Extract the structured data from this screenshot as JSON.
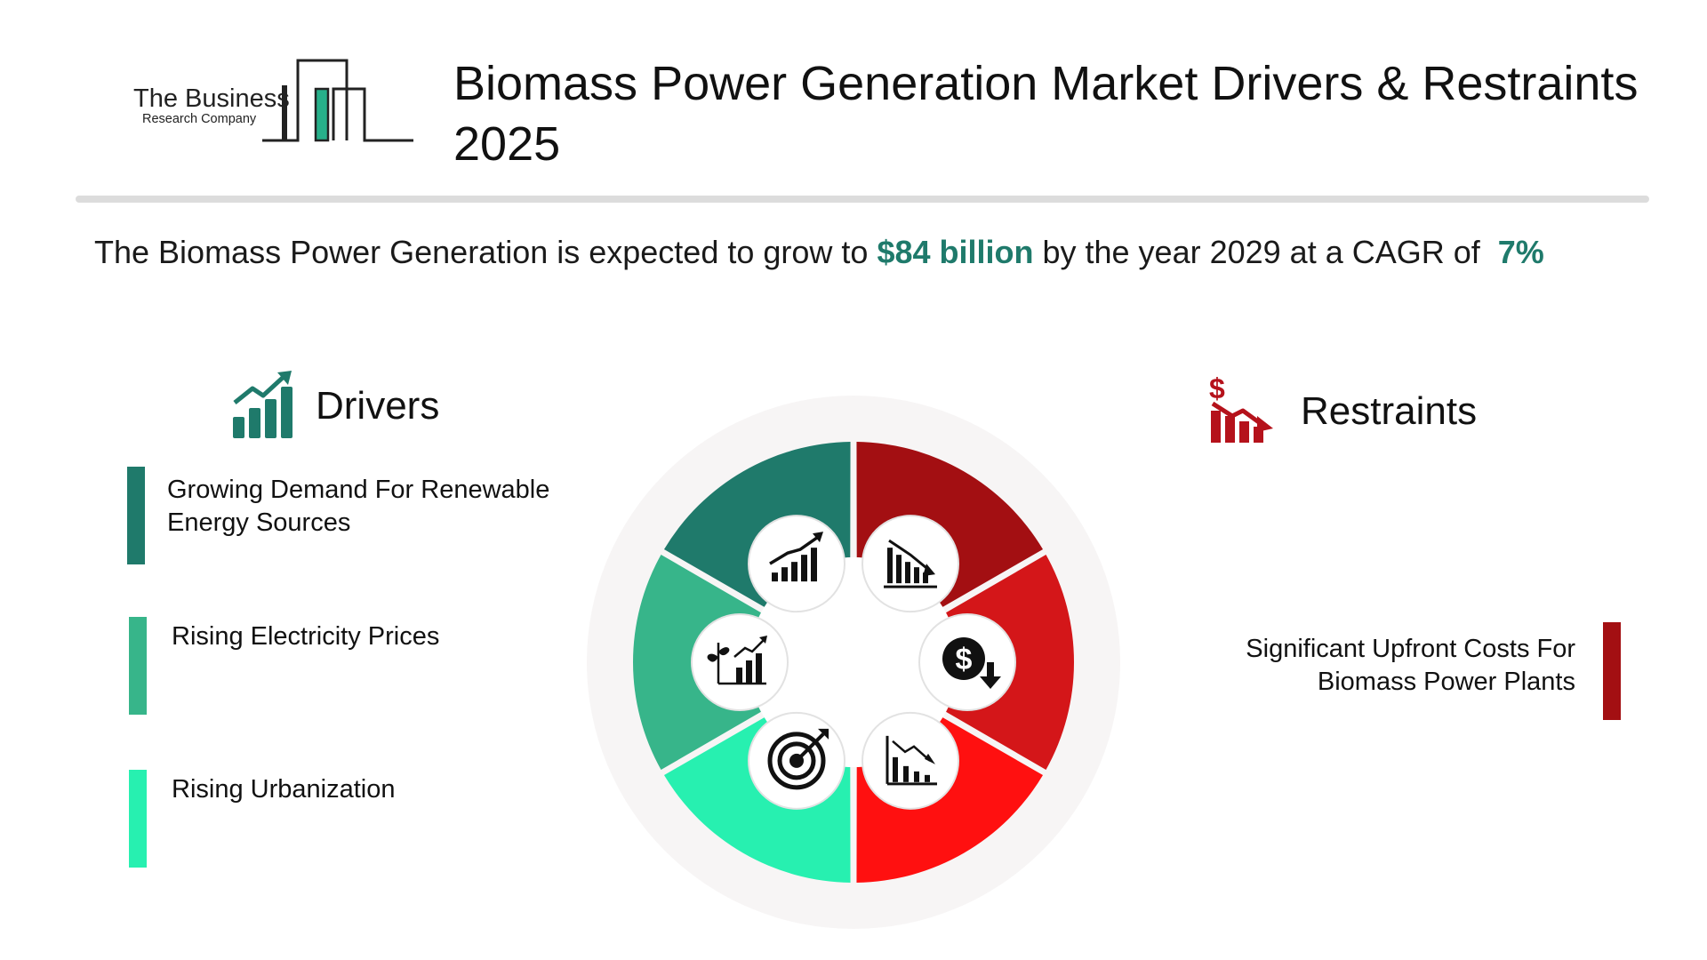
{
  "header": {
    "logo_line1": "The Business",
    "logo_line2": "Research Company",
    "title": "Biomass Power Generation Market Drivers & Restraints 2025"
  },
  "summary": {
    "prefix": "The Biomass Power Generation is expected to grow to ",
    "value": "$84 billion",
    "middle": " by the year 2029 at a CAGR of ",
    "cagr": "7%"
  },
  "drivers": {
    "heading": "Drivers",
    "icon": "growth-chart-icon",
    "items": [
      {
        "label": "Growing Demand For Renewable Energy Sources",
        "color": "#1f7a6b"
      },
      {
        "label": "Rising Electricity Prices",
        "color": "#37b58a"
      },
      {
        "label": "Rising Urbanization",
        "color": "#27f0b0"
      }
    ]
  },
  "restraints": {
    "heading": "Restraints",
    "icon": "dollar-decline-chart-icon",
    "items": [
      {
        "label": "Significant Upfront Costs For Biomass Power Plants",
        "color": "#a30f12"
      }
    ]
  },
  "wheel": {
    "segments": [
      {
        "side": "driver",
        "color": "#1f7a6b",
        "icon": "rising-bar-chart-icon"
      },
      {
        "side": "driver",
        "color": "#37b58a",
        "icon": "plant-growth-chart-icon"
      },
      {
        "side": "driver",
        "color": "#27f0b0",
        "icon": "target-icon"
      },
      {
        "side": "restraint",
        "color": "#a30f12",
        "icon": "declining-bar-chart-icon"
      },
      {
        "side": "restraint",
        "color": "#d41619",
        "icon": "dollar-down-icon"
      },
      {
        "side": "restraint",
        "color": "#ff1010",
        "icon": "falling-line-chart-icon"
      }
    ]
  }
}
